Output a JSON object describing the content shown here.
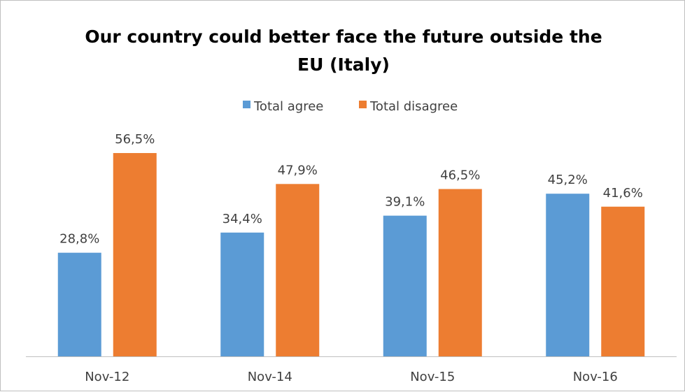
{
  "chart_data": {
    "type": "bar",
    "title_lines": [
      "Our country could better face the future outside the",
      "EU (Italy)"
    ],
    "categories": [
      "Nov-12",
      "Nov-14",
      "Nov-15",
      "Nov-16"
    ],
    "series": [
      {
        "name": "Total agree",
        "color": "#5b9bd5",
        "values": [
          28.8,
          34.4,
          39.1,
          45.2
        ],
        "labels": [
          "28,8%",
          "34,4%",
          "39,1%",
          "45,2%"
        ]
      },
      {
        "name": "Total disagree",
        "color": "#ed7d31",
        "values": [
          56.5,
          47.9,
          46.5,
          41.6
        ],
        "labels": [
          "56,5%",
          "47,9%",
          "46,5%",
          "41,6%"
        ]
      }
    ],
    "ylim": [
      0,
      60
    ],
    "grid": false,
    "legend_position": "top",
    "axis_color": "#bfbfbf"
  }
}
